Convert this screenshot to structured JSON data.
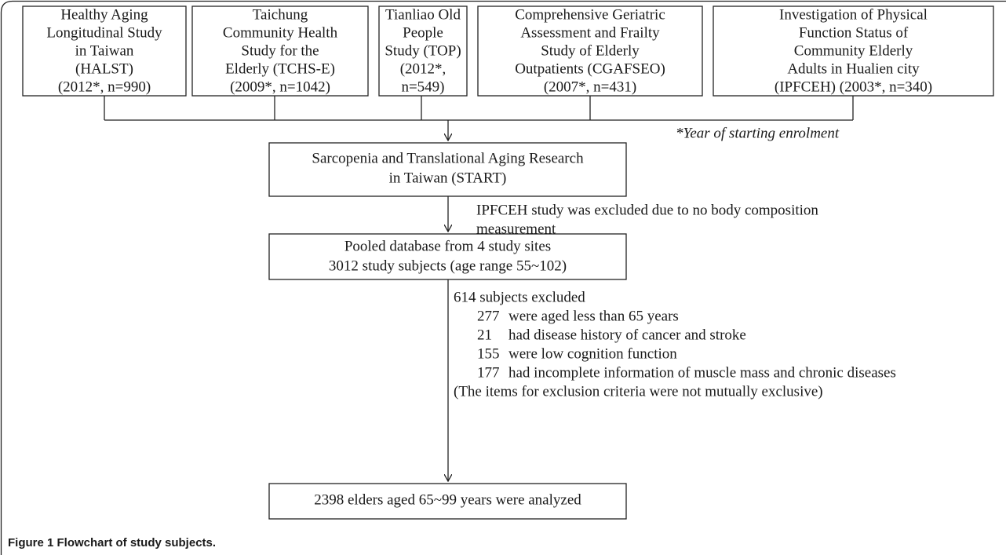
{
  "source_nodes": [
    {
      "lines": [
        "Healthy Aging",
        "Longitudinal Study",
        "in Taiwan",
        "(HALST)",
        "(2012*, n=990)"
      ]
    },
    {
      "lines": [
        "Taichung",
        "Community Health",
        "Study for the",
        "Elderly (TCHS-E)",
        "(2009*, n=1042)"
      ]
    },
    {
      "lines": [
        "Tianliao Old",
        "People",
        "Study (TOP)",
        "(2012*,",
        "n=549)"
      ]
    },
    {
      "lines": [
        "Comprehensive Geriatric",
        "Assessment and Frailty",
        "Study of Elderly",
        "Outpatients (CGAFSEO)",
        "(2007*, n=431)"
      ]
    },
    {
      "lines": [
        "Investigation of Physical",
        "Function Status of",
        "Community Elderly",
        "Adults in Hualien city",
        "(IPFCEH) (2003*, n=340)"
      ]
    }
  ],
  "footnote": "*Year of starting enrolment",
  "start_node": {
    "lines": [
      "Sarcopenia and Translational Aging Research",
      "in Taiwan (START)"
    ]
  },
  "exclusion_1": {
    "lines": [
      "IPFCEH study was excluded due to no body composition",
      "measurement"
    ]
  },
  "pooled_node": {
    "lines": [
      "Pooled database from 4 study sites",
      "3012 study subjects (age range 55~102)"
    ]
  },
  "exclusion_2": {
    "heading": "614 subjects excluded",
    "items": [
      {
        "count": "277",
        "text": "were aged less than 65 years"
      },
      {
        "count": "21",
        "text": "had disease history of cancer and stroke"
      },
      {
        "count": "155",
        "text": "were low cognition function"
      },
      {
        "count": "177",
        "text": "had incomplete information of muscle mass and chronic diseases"
      }
    ],
    "note": "(The items for exclusion criteria were not mutually exclusive)"
  },
  "final_node": {
    "lines": [
      "2398 elders aged 65~99 years were analyzed"
    ]
  },
  "caption": "Figure 1 Flowchart of study subjects."
}
